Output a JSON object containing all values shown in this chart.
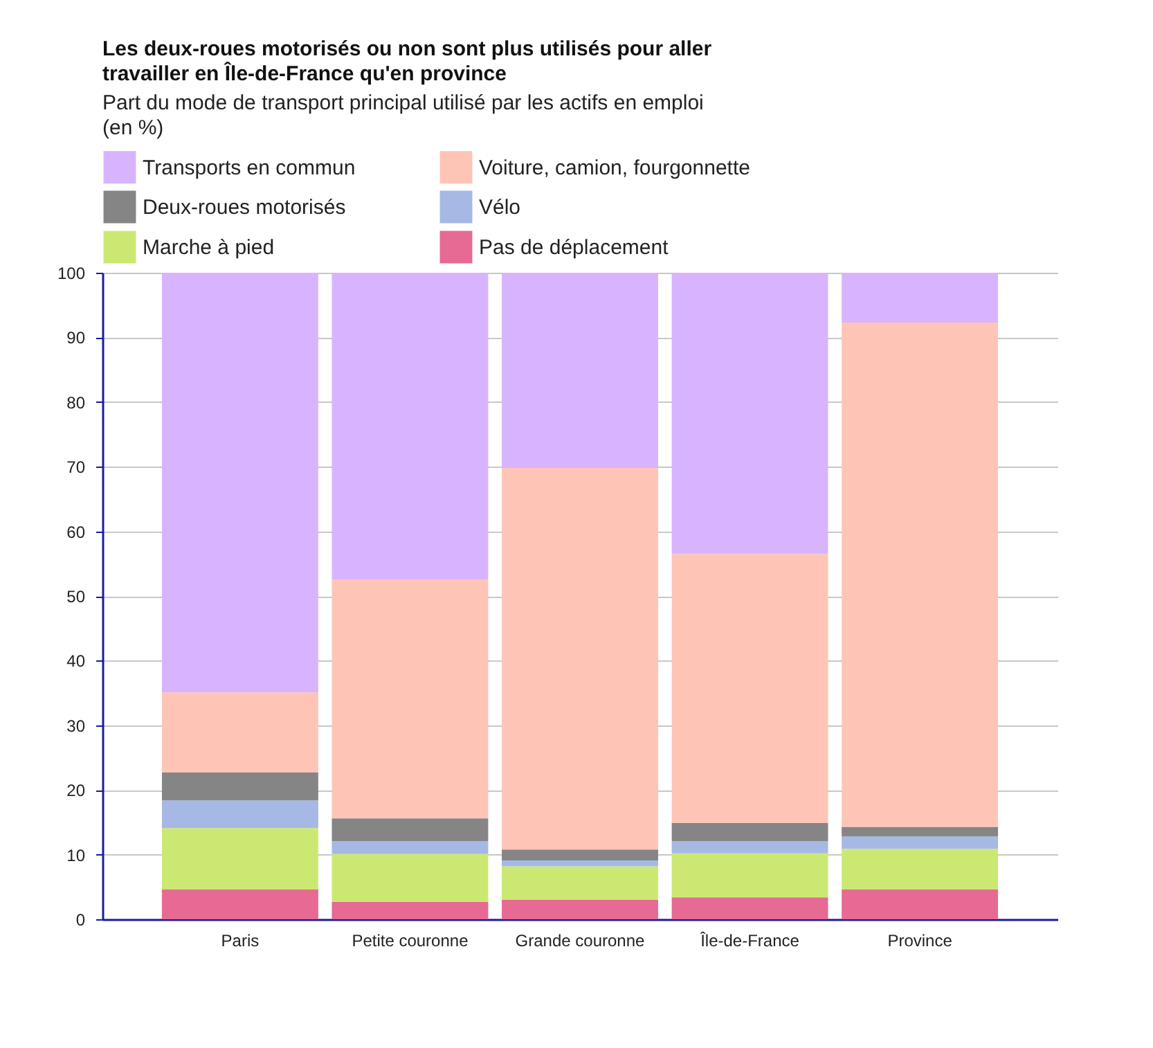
{
  "chart_data": {
    "type": "bar",
    "stacked": true,
    "title": "Les deux-roues motorisés ou non sont plus utilisés pour aller travailler en Île-de-France qu'en province",
    "subtitle": "Part du mode de transport principal utilisé par les actifs en emploi (en %)",
    "categories": [
      "Paris",
      "Petite couronne",
      "Grande couronne",
      "Île-de-France",
      "Province"
    ],
    "series": [
      {
        "name": "Pas de déplacement",
        "color": "#e66a93",
        "values": [
          4.6,
          2.7,
          3.0,
          3.4,
          4.6
        ]
      },
      {
        "name": "Marche à pied",
        "color": "#cbe972",
        "values": [
          9.5,
          7.4,
          5.2,
          6.8,
          6.3
        ]
      },
      {
        "name": "Vélo",
        "color": "#a6b8e4",
        "values": [
          4.3,
          2.0,
          0.9,
          1.9,
          1.9
        ]
      },
      {
        "name": "Deux-roues motorisés",
        "color": "#858585",
        "values": [
          4.3,
          3.5,
          1.7,
          2.8,
          1.5
        ]
      },
      {
        "name": "Voiture, camion, fourgonnette",
        "color": "#fec5b6",
        "values": [
          12.4,
          36.9,
          59.0,
          41.6,
          78.0
        ]
      },
      {
        "name": "Transports en commun",
        "color": "#d8b4fe",
        "values": [
          64.9,
          47.5,
          30.2,
          43.5,
          7.7
        ]
      }
    ],
    "ylim": [
      0,
      100
    ],
    "yticks": [
      0,
      10,
      20,
      30,
      40,
      50,
      60,
      70,
      80,
      90,
      100
    ],
    "grid": "y",
    "legend": "top left"
  }
}
